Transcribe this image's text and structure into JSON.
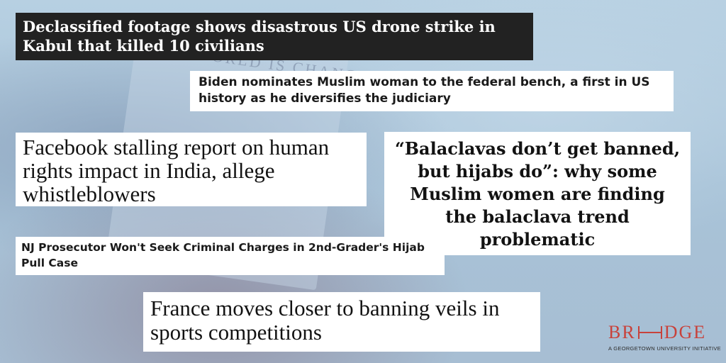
{
  "background": {
    "book_title": "THE WORLD IS CHANGING"
  },
  "headlines": [
    {
      "text": "Declassified footage shows disastrous US drone strike in Kabul that killed 10 civilians"
    },
    {
      "text": "Biden nominates Muslim woman to the federal bench, a first in US history as he diversifies the judiciary"
    },
    {
      "text": "Facebook stalling report on human rights impact in India, allege whistleblowers"
    },
    {
      "text": "“Balaclavas don’t get banned, but hijabs do”: why some Muslim women are finding the balaclava trend problematic"
    },
    {
      "text": "NJ Prosecutor Won't Seek Criminal Charges in 2nd-Grader's Hijab Pull Case"
    },
    {
      "text": "France moves closer to banning veils in sports competitions"
    }
  ],
  "logo": {
    "left": "BR",
    "right": "DGE",
    "tagline": "A GEORGETOWN UNIVERSITY INITIATIVE",
    "color": "#c8423b"
  }
}
